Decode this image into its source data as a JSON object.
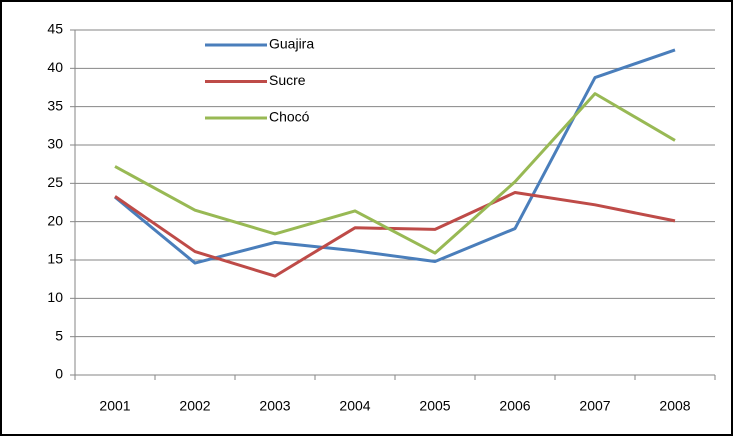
{
  "chart_data": {
    "type": "line",
    "categories": [
      "2001",
      "2002",
      "2003",
      "2004",
      "2005",
      "2006",
      "2007",
      "2008"
    ],
    "series": [
      {
        "name": "Guajira",
        "color": "#4a7ebb",
        "values": [
          23.2,
          14.6,
          17.3,
          16.2,
          14.8,
          19.1,
          38.8,
          42.4
        ]
      },
      {
        "name": "Sucre",
        "color": "#be4b48",
        "values": [
          23.3,
          16.1,
          12.9,
          19.2,
          19.0,
          23.8,
          22.2,
          20.1
        ]
      },
      {
        "name": "Chocó",
        "color": "#98b954",
        "values": [
          27.2,
          21.5,
          18.4,
          21.4,
          15.9,
          25.2,
          36.7,
          30.6
        ]
      }
    ],
    "ylim": [
      0,
      45
    ],
    "yticks": [
      0,
      5,
      10,
      15,
      20,
      25,
      30,
      35,
      40,
      45
    ],
    "grid": true,
    "legend": "top-left"
  }
}
